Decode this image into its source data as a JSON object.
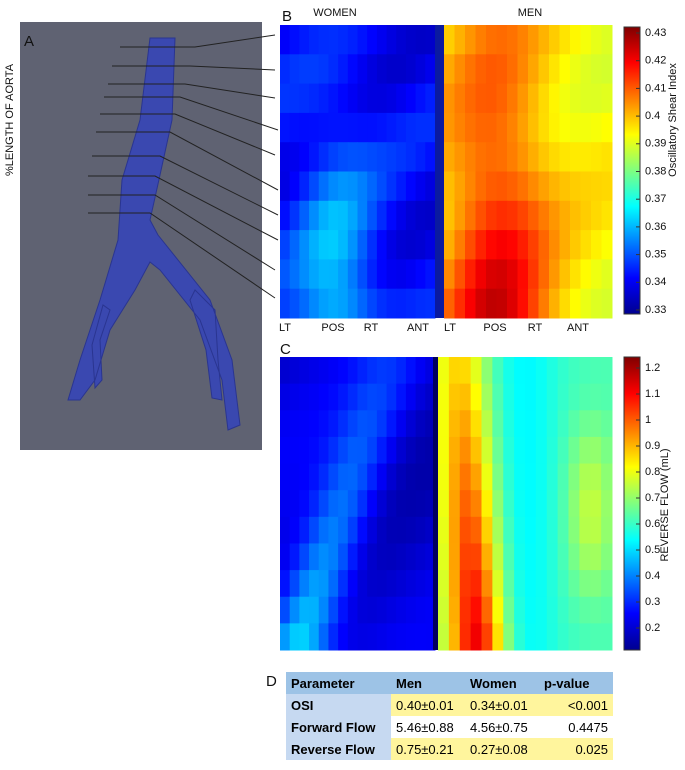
{
  "panels": {
    "a": {
      "label": "A",
      "y_axis_label": "%LENGTH OF AORTA"
    },
    "b": {
      "label": "B",
      "groups": [
        "WOMEN",
        "MEN"
      ],
      "x_labels": [
        "LT",
        "POS",
        "RT",
        "ANT",
        "LT",
        "POS",
        "RT",
        "ANT"
      ],
      "colorbar": {
        "title": "Oscillatory Shear Index",
        "ticks": [
          0.43,
          0.42,
          0.41,
          0.4,
          0.39,
          0.38,
          0.37,
          0.36,
          0.35,
          0.34,
          0.33
        ]
      }
    },
    "c": {
      "label": "C",
      "colorbar": {
        "title": "REVERSE FLOW (mL)",
        "ticks": [
          1.2,
          1.1,
          1,
          0.9,
          0.8,
          0.7,
          0.6,
          0.5,
          0.4,
          0.3,
          0.2
        ]
      }
    },
    "d": {
      "label": "D",
      "table": {
        "header": [
          "Parameter",
          "Men",
          "Women",
          "p-value"
        ],
        "rows": [
          [
            "OSI",
            "0.40±0.01",
            "0.34±0.01",
            "<0.001"
          ],
          [
            "Forward Flow",
            "5.46±0.88",
            "4.56±0.75",
            "0.4475"
          ],
          [
            "Reverse Flow",
            "0.75±0.21",
            "0.27±0.08",
            "0.025"
          ]
        ]
      }
    }
  }
}
